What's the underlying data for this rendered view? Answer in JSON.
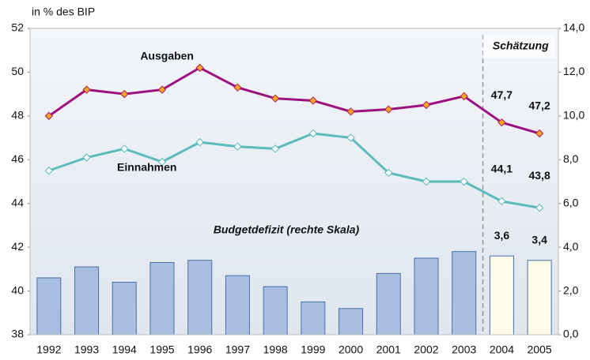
{
  "chart_data": {
    "type": "bar-line",
    "title": "in % des BIP",
    "categories": [
      "1992",
      "1993",
      "1994",
      "1995",
      "1996",
      "1997",
      "1998",
      "1999",
      "2000",
      "2001",
      "2002",
      "2003",
      "2004",
      "2005"
    ],
    "series": [
      {
        "name": "Ausgaben",
        "kind": "line",
        "color": "#9c117f",
        "marker_color": "#f5a623",
        "axis": "y",
        "values": [
          48.0,
          49.2,
          49.0,
          49.2,
          50.2,
          49.3,
          48.8,
          48.7,
          48.2,
          48.3,
          48.5,
          48.9,
          47.7,
          47.2
        ],
        "value_labels": [
          null,
          null,
          null,
          null,
          null,
          null,
          null,
          null,
          null,
          null,
          null,
          null,
          "47,7",
          "47,2"
        ]
      },
      {
        "name": "Einnahmen",
        "kind": "line",
        "color": "#5bbcba",
        "marker_color": "#ffffff",
        "axis": "y",
        "values": [
          45.5,
          46.1,
          46.5,
          45.9,
          46.8,
          46.6,
          46.5,
          47.2,
          47.0,
          45.4,
          45.0,
          45.0,
          44.1,
          43.8
        ],
        "value_labels": [
          null,
          null,
          null,
          null,
          null,
          null,
          null,
          null,
          null,
          null,
          null,
          null,
          "44,1",
          "43,8"
        ]
      },
      {
        "name": "Budgetdefizit (rechte Skala)",
        "kind": "bar",
        "color": "#a9bfe2",
        "estimate_color": "#fdfbe9",
        "label_color": "#3a6fb0",
        "axis": "y2",
        "values": [
          2.6,
          3.1,
          2.4,
          3.3,
          3.4,
          2.7,
          2.2,
          1.5,
          1.2,
          2.8,
          3.5,
          3.8,
          3.6,
          3.4
        ],
        "value_labels": [
          null,
          null,
          null,
          null,
          null,
          null,
          null,
          null,
          null,
          null,
          null,
          null,
          "3,6",
          "3,4"
        ]
      }
    ],
    "annotation": {
      "text": "Schätzung",
      "from": "2004"
    },
    "ylim": [
      38,
      52
    ],
    "yticks": [
      38,
      40,
      42,
      44,
      46,
      48,
      50,
      52
    ],
    "y2lim": [
      0,
      14
    ],
    "y2ticks": [
      {
        "value": 0,
        "label": "0,0"
      },
      {
        "value": 2,
        "label": "2,0"
      },
      {
        "value": 4,
        "label": "4,0"
      },
      {
        "value": 6,
        "label": "6,0"
      },
      {
        "value": 8,
        "label": "8,0"
      },
      {
        "value": 10,
        "label": "10,0"
      },
      {
        "value": 12,
        "label": "12,0"
      },
      {
        "value": 14,
        "label": "14,0"
      }
    ]
  }
}
